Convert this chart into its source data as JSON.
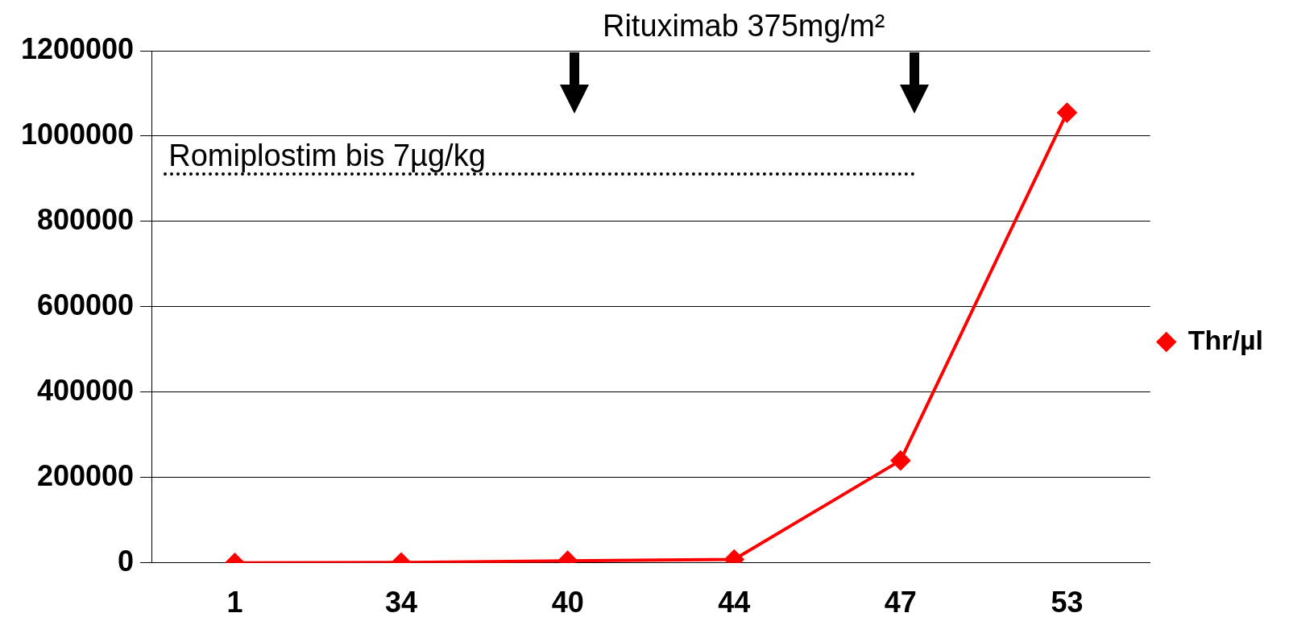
{
  "chart_data": {
    "type": "line",
    "categories": [
      "1",
      "34",
      "40",
      "44",
      "47",
      "53"
    ],
    "series": [
      {
        "name": "Thr/µl",
        "color": "#ff0000",
        "values": [
          0,
          1000,
          5000,
          8000,
          240000,
          1055000
        ]
      }
    ],
    "ylim": [
      0,
      1200000
    ],
    "yticks": [
      0,
      200000,
      400000,
      600000,
      800000,
      1000000,
      1200000
    ],
    "grid": "y",
    "legend": "right",
    "marker": "diamond",
    "annotations": [
      "Rituximab 375mg/m²",
      "Romiplostim bis 7µg/kg"
    ]
  }
}
